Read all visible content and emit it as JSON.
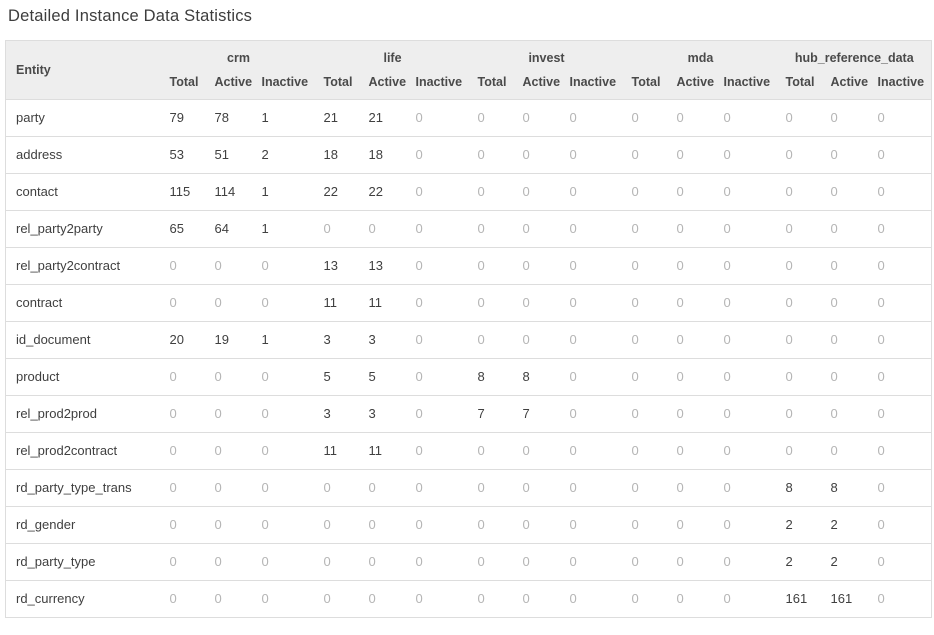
{
  "page": {
    "title": "Detailed Instance Data Statistics"
  },
  "colors": {
    "header_bg": "#eeeeee",
    "header_text": "#4a4a4a",
    "value_text": "#404040",
    "zero_value_text": "#b5b5b5",
    "row_border": "#dddddd",
    "title_text": "#3d3d3d"
  },
  "table": {
    "entity_header": "Entity",
    "groups": [
      {
        "label": "crm"
      },
      {
        "label": "life"
      },
      {
        "label": "invest"
      },
      {
        "label": "mda"
      },
      {
        "label": "hub_reference_data"
      }
    ],
    "sub_headers": [
      "Total",
      "Active",
      "Inactive"
    ],
    "rows": [
      {
        "entity": "party",
        "values": [
          79,
          78,
          1,
          21,
          21,
          0,
          0,
          0,
          0,
          0,
          0,
          0,
          0,
          0,
          0
        ]
      },
      {
        "entity": "address",
        "values": [
          53,
          51,
          2,
          18,
          18,
          0,
          0,
          0,
          0,
          0,
          0,
          0,
          0,
          0,
          0
        ]
      },
      {
        "entity": "contact",
        "values": [
          115,
          114,
          1,
          22,
          22,
          0,
          0,
          0,
          0,
          0,
          0,
          0,
          0,
          0,
          0
        ]
      },
      {
        "entity": "rel_party2party",
        "values": [
          65,
          64,
          1,
          0,
          0,
          0,
          0,
          0,
          0,
          0,
          0,
          0,
          0,
          0,
          0
        ]
      },
      {
        "entity": "rel_party2contract",
        "values": [
          0,
          0,
          0,
          13,
          13,
          0,
          0,
          0,
          0,
          0,
          0,
          0,
          0,
          0,
          0
        ]
      },
      {
        "entity": "contract",
        "values": [
          0,
          0,
          0,
          11,
          11,
          0,
          0,
          0,
          0,
          0,
          0,
          0,
          0,
          0,
          0
        ]
      },
      {
        "entity": "id_document",
        "values": [
          20,
          19,
          1,
          3,
          3,
          0,
          0,
          0,
          0,
          0,
          0,
          0,
          0,
          0,
          0
        ]
      },
      {
        "entity": "product",
        "values": [
          0,
          0,
          0,
          5,
          5,
          0,
          8,
          8,
          0,
          0,
          0,
          0,
          0,
          0,
          0
        ]
      },
      {
        "entity": "rel_prod2prod",
        "values": [
          0,
          0,
          0,
          3,
          3,
          0,
          7,
          7,
          0,
          0,
          0,
          0,
          0,
          0,
          0
        ]
      },
      {
        "entity": "rel_prod2contract",
        "values": [
          0,
          0,
          0,
          11,
          11,
          0,
          0,
          0,
          0,
          0,
          0,
          0,
          0,
          0,
          0
        ]
      },
      {
        "entity": "rd_party_type_trans",
        "values": [
          0,
          0,
          0,
          0,
          0,
          0,
          0,
          0,
          0,
          0,
          0,
          0,
          8,
          8,
          0
        ]
      },
      {
        "entity": "rd_gender",
        "values": [
          0,
          0,
          0,
          0,
          0,
          0,
          0,
          0,
          0,
          0,
          0,
          0,
          2,
          2,
          0
        ]
      },
      {
        "entity": "rd_party_type",
        "values": [
          0,
          0,
          0,
          0,
          0,
          0,
          0,
          0,
          0,
          0,
          0,
          0,
          2,
          2,
          0
        ]
      },
      {
        "entity": "rd_currency",
        "values": [
          0,
          0,
          0,
          0,
          0,
          0,
          0,
          0,
          0,
          0,
          0,
          0,
          161,
          161,
          0
        ]
      }
    ]
  }
}
